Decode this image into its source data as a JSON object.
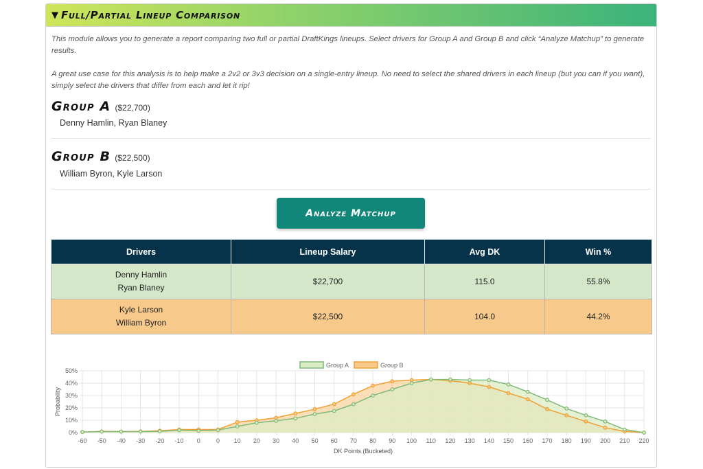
{
  "module": {
    "caret": "▼",
    "title": "Full/Partial Lineup Comparison",
    "intro1": "This module allows you to generate a report comparing two full or partial DraftKings lineups. Select drivers for Group A and Group B and click “Analyze Matchup” to generate results.",
    "intro2": "A great use case for this analysis is to help make a 2v2 or 3v3 decision on a single-entry lineup. No need to select the shared drivers in each lineup (but you can if you want), simply select the drivers that differ from each and let it rip!"
  },
  "groups": [
    {
      "title": "Group A",
      "salary": "($22,700)",
      "drivers": "Denny Hamlin, Ryan Blaney"
    },
    {
      "title": "Group B",
      "salary": "($22,500)",
      "drivers": "William Byron, Kyle Larson"
    }
  ],
  "analyze_button": "Analyze Matchup",
  "table": {
    "headers": [
      "Drivers",
      "Lineup Salary",
      "Avg DK",
      "Win %"
    ],
    "rows": [
      {
        "driver1": "Denny Hamlin",
        "driver2": "Ryan Blaney",
        "salary": "$22,700",
        "avg_dk": "115.0",
        "win": "55.8%"
      },
      {
        "driver1": "Kyle Larson",
        "driver2": "William Byron",
        "salary": "$22,500",
        "avg_dk": "104.0",
        "win": "44.2%"
      }
    ]
  },
  "colors": {
    "group_a_line": "#7fb97a",
    "group_a_fill": "#dcecc4",
    "group_b_line": "#f0a030",
    "group_b_fill": "#f7c98a",
    "header_dark": "#06334a",
    "button": "#11877a"
  },
  "chart_data": {
    "type": "area",
    "xlabel": "DK Points (Bucketed)",
    "ylabel": "Probability",
    "ylim": [
      0,
      50
    ],
    "yticks": [
      "0%",
      "10%",
      "20%",
      "30%",
      "40%",
      "50%"
    ],
    "x": [
      -60,
      -50,
      -40,
      -30,
      -20,
      -10,
      0,
      0,
      10,
      20,
      30,
      40,
      50,
      60,
      70,
      80,
      90,
      100,
      110,
      120,
      130,
      140,
      150,
      160,
      170,
      180,
      190,
      200,
      210,
      220
    ],
    "series": [
      {
        "name": "Group A",
        "values": [
          0.5,
          0.8,
          0.8,
          0.8,
          1,
          2,
          1.5,
          2,
          5,
          8,
          9.5,
          11.5,
          15,
          17.5,
          23,
          30,
          35,
          40,
          43,
          43,
          42.5,
          42.5,
          39,
          33,
          26.5,
          19.5,
          14,
          9,
          2.5,
          0
        ]
      },
      {
        "name": "Group B",
        "values": [
          0.5,
          1,
          0.8,
          1,
          1.5,
          2.5,
          2.5,
          2.5,
          8.5,
          10,
          12,
          15.5,
          19,
          23,
          31,
          38,
          41.5,
          42.5,
          43,
          42,
          40,
          37,
          32,
          27,
          19,
          14,
          9,
          4,
          1,
          0
        ]
      }
    ],
    "legend_position": "top-center"
  }
}
